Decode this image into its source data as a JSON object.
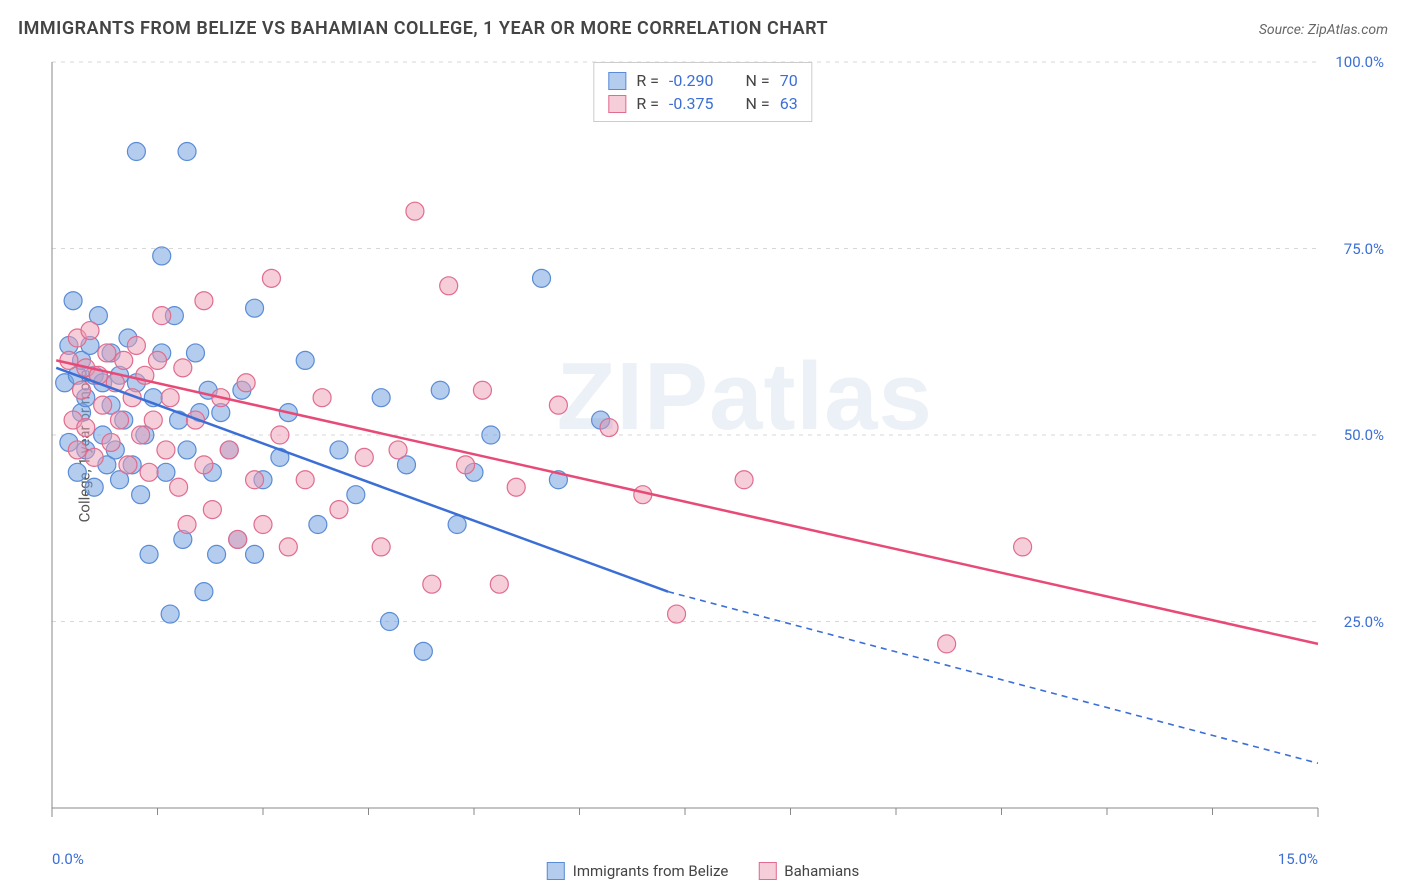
{
  "title": "IMMIGRANTS FROM BELIZE VS BAHAMIAN COLLEGE, 1 YEAR OR MORE CORRELATION CHART",
  "source": "Source: ZipAtlas.com",
  "watermark_zip": "ZIP",
  "watermark_atlas": "atlas",
  "y_axis_label": "College, 1 year or more",
  "chart": {
    "type": "scatter",
    "background_color": "#ffffff",
    "grid_color": "#d7d7d7",
    "axis_color": "#888",
    "tick_text_color": "#3b6fd6",
    "xlim": [
      0,
      15
    ],
    "ylim": [
      0,
      100
    ],
    "x_tick_labels": [
      {
        "value": 0,
        "label": "0.0%"
      },
      {
        "value": 15,
        "label": "15.0%"
      }
    ],
    "x_minor_ticks": [
      1.25,
      2.5,
      3.75,
      5,
      6.25,
      7.5,
      8.75,
      10,
      11.25,
      12.5,
      13.75
    ],
    "y_grid": [
      {
        "value": 25,
        "label": "25.0%"
      },
      {
        "value": 50,
        "label": "50.0%"
      },
      {
        "value": 75,
        "label": "75.0%"
      },
      {
        "value": 100,
        "label": "100.0%"
      }
    ],
    "series": [
      {
        "name": "Immigrants from Belize",
        "color_fill": "rgba(118,162,222,0.55)",
        "color_stroke": "#5a8cd6",
        "line_color": "#3b6fd6",
        "marker_radius": 9,
        "R": "-0.290",
        "N": "70",
        "regression": {
          "solid": {
            "x1": 0.05,
            "y1": 59,
            "x2": 7.3,
            "y2": 29
          },
          "dashed": {
            "x1": 7.3,
            "y1": 29,
            "x2": 15,
            "y2": 6
          }
        },
        "points": [
          {
            "x": 0.15,
            "y": 57
          },
          {
            "x": 0.2,
            "y": 62
          },
          {
            "x": 0.2,
            "y": 49
          },
          {
            "x": 0.25,
            "y": 68
          },
          {
            "x": 0.3,
            "y": 45
          },
          {
            "x": 0.3,
            "y": 58
          },
          {
            "x": 0.35,
            "y": 53
          },
          {
            "x": 0.35,
            "y": 60
          },
          {
            "x": 0.4,
            "y": 48
          },
          {
            "x": 0.4,
            "y": 55
          },
          {
            "x": 0.45,
            "y": 62
          },
          {
            "x": 0.5,
            "y": 43
          },
          {
            "x": 0.5,
            "y": 58
          },
          {
            "x": 0.55,
            "y": 66
          },
          {
            "x": 0.6,
            "y": 50
          },
          {
            "x": 0.6,
            "y": 57
          },
          {
            "x": 0.65,
            "y": 46
          },
          {
            "x": 0.7,
            "y": 54
          },
          {
            "x": 0.7,
            "y": 61
          },
          {
            "x": 0.75,
            "y": 48
          },
          {
            "x": 0.8,
            "y": 58
          },
          {
            "x": 0.8,
            "y": 44
          },
          {
            "x": 0.85,
            "y": 52
          },
          {
            "x": 0.9,
            "y": 63
          },
          {
            "x": 0.95,
            "y": 46
          },
          {
            "x": 1.0,
            "y": 88
          },
          {
            "x": 1.0,
            "y": 57
          },
          {
            "x": 1.05,
            "y": 42
          },
          {
            "x": 1.1,
            "y": 50
          },
          {
            "x": 1.15,
            "y": 34
          },
          {
            "x": 1.2,
            "y": 55
          },
          {
            "x": 1.3,
            "y": 61
          },
          {
            "x": 1.3,
            "y": 74
          },
          {
            "x": 1.35,
            "y": 45
          },
          {
            "x": 1.4,
            "y": 26
          },
          {
            "x": 1.45,
            "y": 66
          },
          {
            "x": 1.5,
            "y": 52
          },
          {
            "x": 1.55,
            "y": 36
          },
          {
            "x": 1.6,
            "y": 88
          },
          {
            "x": 1.6,
            "y": 48
          },
          {
            "x": 1.7,
            "y": 61
          },
          {
            "x": 1.75,
            "y": 53
          },
          {
            "x": 1.8,
            "y": 29
          },
          {
            "x": 1.85,
            "y": 56
          },
          {
            "x": 1.9,
            "y": 45
          },
          {
            "x": 1.95,
            "y": 34
          },
          {
            "x": 2.0,
            "y": 53
          },
          {
            "x": 2.1,
            "y": 48
          },
          {
            "x": 2.2,
            "y": 36
          },
          {
            "x": 2.25,
            "y": 56
          },
          {
            "x": 2.4,
            "y": 67
          },
          {
            "x": 2.4,
            "y": 34
          },
          {
            "x": 2.5,
            "y": 44
          },
          {
            "x": 2.7,
            "y": 47
          },
          {
            "x": 2.8,
            "y": 53
          },
          {
            "x": 3.0,
            "y": 60
          },
          {
            "x": 3.15,
            "y": 38
          },
          {
            "x": 3.4,
            "y": 48
          },
          {
            "x": 3.6,
            "y": 42
          },
          {
            "x": 3.9,
            "y": 55
          },
          {
            "x": 4.0,
            "y": 25
          },
          {
            "x": 4.2,
            "y": 46
          },
          {
            "x": 4.4,
            "y": 21
          },
          {
            "x": 4.6,
            "y": 56
          },
          {
            "x": 4.8,
            "y": 38
          },
          {
            "x": 5.0,
            "y": 45
          },
          {
            "x": 5.2,
            "y": 50
          },
          {
            "x": 5.8,
            "y": 71
          },
          {
            "x": 6.0,
            "y": 44
          },
          {
            "x": 6.5,
            "y": 52
          }
        ]
      },
      {
        "name": "Bahamians",
        "color_fill": "rgba(238,158,179,0.5)",
        "color_stroke": "#e06c8f",
        "line_color": "#e84a77",
        "marker_radius": 9,
        "R": "-0.375",
        "N": "63",
        "regression": {
          "solid": {
            "x1": 0.05,
            "y1": 60,
            "x2": 15,
            "y2": 22
          },
          "dashed": null
        },
        "points": [
          {
            "x": 0.2,
            "y": 60
          },
          {
            "x": 0.25,
            "y": 52
          },
          {
            "x": 0.3,
            "y": 63
          },
          {
            "x": 0.3,
            "y": 48
          },
          {
            "x": 0.35,
            "y": 56
          },
          {
            "x": 0.4,
            "y": 59
          },
          {
            "x": 0.4,
            "y": 51
          },
          {
            "x": 0.45,
            "y": 64
          },
          {
            "x": 0.5,
            "y": 47
          },
          {
            "x": 0.55,
            "y": 58
          },
          {
            "x": 0.6,
            "y": 54
          },
          {
            "x": 0.65,
            "y": 61
          },
          {
            "x": 0.7,
            "y": 49
          },
          {
            "x": 0.75,
            "y": 57
          },
          {
            "x": 0.8,
            "y": 52
          },
          {
            "x": 0.85,
            "y": 60
          },
          {
            "x": 0.9,
            "y": 46
          },
          {
            "x": 0.95,
            "y": 55
          },
          {
            "x": 1.0,
            "y": 62
          },
          {
            "x": 1.05,
            "y": 50
          },
          {
            "x": 1.1,
            "y": 58
          },
          {
            "x": 1.15,
            "y": 45
          },
          {
            "x": 1.2,
            "y": 52
          },
          {
            "x": 1.25,
            "y": 60
          },
          {
            "x": 1.3,
            "y": 66
          },
          {
            "x": 1.35,
            "y": 48
          },
          {
            "x": 1.4,
            "y": 55
          },
          {
            "x": 1.5,
            "y": 43
          },
          {
            "x": 1.55,
            "y": 59
          },
          {
            "x": 1.6,
            "y": 38
          },
          {
            "x": 1.7,
            "y": 52
          },
          {
            "x": 1.8,
            "y": 46
          },
          {
            "x": 1.8,
            "y": 68
          },
          {
            "x": 1.9,
            "y": 40
          },
          {
            "x": 2.0,
            "y": 55
          },
          {
            "x": 2.1,
            "y": 48
          },
          {
            "x": 2.2,
            "y": 36
          },
          {
            "x": 2.3,
            "y": 57
          },
          {
            "x": 2.4,
            "y": 44
          },
          {
            "x": 2.5,
            "y": 38
          },
          {
            "x": 2.6,
            "y": 71
          },
          {
            "x": 2.7,
            "y": 50
          },
          {
            "x": 2.8,
            "y": 35
          },
          {
            "x": 3.0,
            "y": 44
          },
          {
            "x": 3.2,
            "y": 55
          },
          {
            "x": 3.4,
            "y": 40
          },
          {
            "x": 3.7,
            "y": 47
          },
          {
            "x": 3.9,
            "y": 35
          },
          {
            "x": 4.1,
            "y": 48
          },
          {
            "x": 4.3,
            "y": 80
          },
          {
            "x": 4.5,
            "y": 30
          },
          {
            "x": 4.7,
            "y": 70
          },
          {
            "x": 4.9,
            "y": 46
          },
          {
            "x": 5.1,
            "y": 56
          },
          {
            "x": 5.3,
            "y": 30
          },
          {
            "x": 5.5,
            "y": 43
          },
          {
            "x": 6.0,
            "y": 54
          },
          {
            "x": 6.6,
            "y": 51
          },
          {
            "x": 7.0,
            "y": 42
          },
          {
            "x": 7.4,
            "y": 26
          },
          {
            "x": 8.2,
            "y": 44
          },
          {
            "x": 10.6,
            "y": 22
          },
          {
            "x": 11.5,
            "y": 35
          }
        ]
      }
    ]
  },
  "bottom_legend": [
    {
      "label": "Immigrants from Belize",
      "fill": "rgba(118,162,222,0.55)",
      "stroke": "#5a8cd6"
    },
    {
      "label": "Bahamians",
      "fill": "rgba(238,158,179,0.5)",
      "stroke": "#e06c8f"
    }
  ],
  "stats_labels": {
    "R": "R =",
    "N": "N ="
  }
}
